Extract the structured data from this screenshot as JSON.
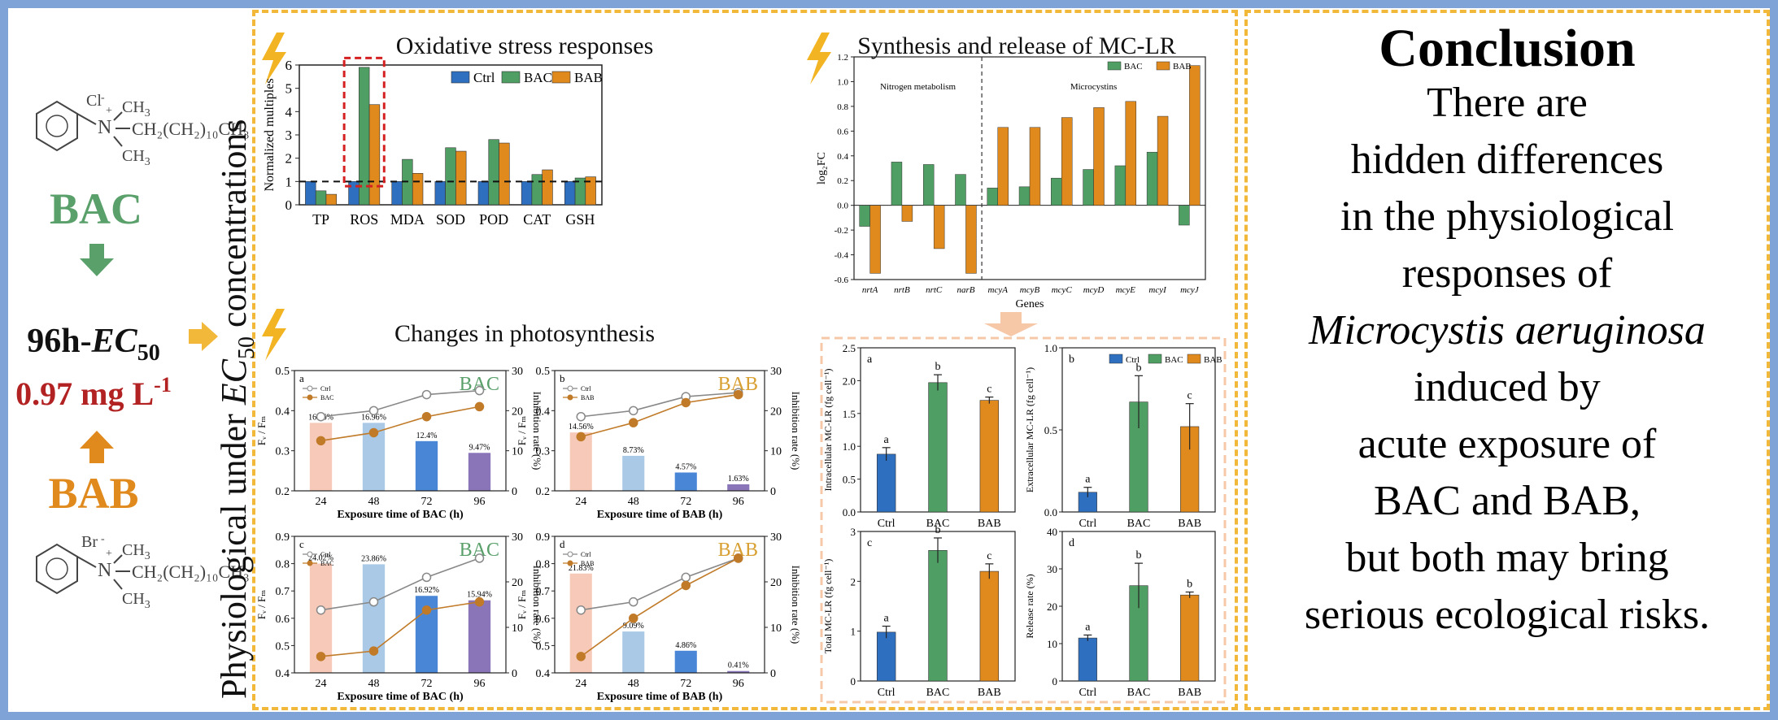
{
  "left": {
    "bac_label": "BAC",
    "bab_label": "BAB",
    "ec50_prefix": "96h-",
    "ec50_symbol": "EC",
    "ec50_sub": "50",
    "ec50_value": "0.97 mg L",
    "ec50_exp": "-1",
    "struct_bac": {
      "anion": "Cl",
      "methyl": "CH",
      "chain": "CH₂(CH₂)₁₀CH₃"
    },
    "struct_bab": {
      "anion": "Br",
      "methyl": "CH",
      "chain": "CH₂(CH₂)₁₀CH₃"
    },
    "colors": {
      "bac": "#5aa06b",
      "bab": "#e08a1e",
      "ec_red": "#b22222"
    }
  },
  "vertical_label": {
    "text": "Physiological under ",
    "ec": "EC",
    "sub": "50",
    "tail": " concentrations"
  },
  "sections": {
    "oxidative": "Oxidative stress responses",
    "photosynthesis": "Changes in photosynthesis",
    "mclr": "Synthesis and release of MC-LR"
  },
  "conclusion": {
    "title": "Conclusion",
    "lines": [
      "There are",
      "hidden differences",
      "in the physiological",
      "responses of"
    ],
    "species": "Microcystis aeruginosa",
    "lines2": [
      "induced by",
      "acute exposure of",
      "BAC and BAB,",
      "but both may bring",
      "serious ecological risks."
    ]
  },
  "chart_data": [
    {
      "id": "oxidative",
      "type": "bar",
      "title": "Oxidative stress responses",
      "ylabel": "Normalized multiples",
      "ylim": [
        0,
        6
      ],
      "yticks": [
        0,
        1,
        2,
        3,
        4,
        5,
        6
      ],
      "categories": [
        "TP",
        "ROS",
        "MDA",
        "SOD",
        "POD",
        "CAT",
        "GSH"
      ],
      "series": [
        {
          "name": "Ctrl",
          "color": "#2f6fbf",
          "values": [
            1,
            1,
            1,
            1,
            1,
            1,
            1
          ]
        },
        {
          "name": "BAC",
          "color": "#4f9e63",
          "values": [
            0.6,
            5.9,
            1.95,
            2.45,
            2.8,
            1.3,
            1.15
          ]
        },
        {
          "name": "BAB",
          "color": "#e08a1e",
          "values": [
            0.45,
            4.3,
            1.35,
            2.3,
            2.65,
            1.5,
            1.2
          ]
        }
      ],
      "reference_line": 1,
      "legend": "top-right"
    },
    {
      "id": "mcgenes",
      "type": "bar",
      "title": "Synthesis and release of MC-LR",
      "ylabel": "log₂FC",
      "xlabel": "Genes",
      "ylim": [
        -0.6,
        1.2
      ],
      "yticks": [
        -0.6,
        -0.4,
        -0.2,
        0.0,
        0.2,
        0.4,
        0.6,
        0.8,
        1.0,
        1.2
      ],
      "categories": [
        "nrtA",
        "nrtB",
        "nrtC",
        "narB",
        "mcyA",
        "mcyB",
        "mcyC",
        "mcyD",
        "mcyE",
        "mcyI",
        "mcyJ"
      ],
      "group_labels": [
        "Nitrogen metabolism",
        "Microcystins"
      ],
      "series": [
        {
          "name": "BAC",
          "color": "#4f9e63",
          "values": [
            -0.17,
            0.35,
            0.33,
            0.25,
            0.14,
            0.15,
            0.22,
            0.29,
            0.32,
            0.43,
            -0.16
          ]
        },
        {
          "name": "BAB",
          "color": "#e08a1e",
          "values": [
            -0.55,
            -0.13,
            -0.35,
            -0.55,
            0.63,
            0.63,
            0.71,
            0.79,
            0.84,
            0.72,
            1.13
          ]
        }
      ],
      "legend": "top-right"
    },
    {
      "id": "pa",
      "panel": "a",
      "type": "bar+line",
      "tag": "BAC",
      "xlabel": "Exposure time of BAC (h)",
      "ylabel": "Fᵥ / Fₘ",
      "y2label": "Inhibition rate (%)",
      "categories": [
        "24",
        "48",
        "72",
        "96"
      ],
      "ylim": [
        0.2,
        0.5
      ],
      "yticks": [
        0.2,
        0.3,
        0.4,
        0.5
      ],
      "y2lim": [
        0,
        30
      ],
      "y2ticks": [
        0,
        10,
        20,
        30
      ],
      "bars": [
        16.96,
        16.96,
        12.4,
        9.47
      ],
      "bar_labels": [
        "16.96%",
        "16.96%",
        "12.4%",
        "9.47%"
      ],
      "ctrl": [
        0.385,
        0.4,
        0.44,
        0.45
      ],
      "treat": [
        0.325,
        0.345,
        0.385,
        0.41
      ],
      "series_names": [
        "Ctrl",
        "BAC"
      ]
    },
    {
      "id": "pb",
      "panel": "b",
      "type": "bar+line",
      "tag": "BAB",
      "xlabel": "Exposure time of BAB (h)",
      "ylabel": "Fᵥ / Fₘ",
      "y2label": "Inhibition rate (%)",
      "categories": [
        "24",
        "48",
        "72",
        "96"
      ],
      "ylim": [
        0.2,
        0.5
      ],
      "yticks": [
        0.2,
        0.3,
        0.4,
        0.5
      ],
      "y2lim": [
        0,
        30
      ],
      "y2ticks": [
        0,
        10,
        20,
        30
      ],
      "bars": [
        14.56,
        8.73,
        4.57,
        1.63
      ],
      "bar_labels": [
        "14.56%",
        "8.73%",
        "4.57%",
        "1.63%"
      ],
      "ctrl": [
        0.385,
        0.4,
        0.435,
        0.445
      ],
      "treat": [
        0.335,
        0.37,
        0.42,
        0.44
      ],
      "series_names": [
        "Ctrl",
        "BAB"
      ]
    },
    {
      "id": "pc",
      "panel": "c",
      "type": "bar+line",
      "tag": "BAC",
      "xlabel": "Exposure time of BAC (h)",
      "ylabel": "Fᵥ / Fₘ",
      "y2label": "Inhibition rate (%)",
      "categories": [
        "24",
        "48",
        "72",
        "96"
      ],
      "ylim": [
        0.4,
        0.9
      ],
      "yticks": [
        0.4,
        0.5,
        0.6,
        0.7,
        0.8,
        0.9
      ],
      "y2lim": [
        0,
        30
      ],
      "y2ticks": [
        0,
        10,
        20,
        30
      ],
      "bars": [
        24.02,
        23.86,
        16.92,
        15.94
      ],
      "bar_labels": [
        "24.02%",
        "23.86%",
        "16.92%",
        "15.94%"
      ],
      "ctrl": [
        0.63,
        0.66,
        0.75,
        0.82
      ],
      "treat": [
        0.46,
        0.48,
        0.63,
        0.66
      ],
      "series_names": [
        "Ctrl",
        "BAC"
      ]
    },
    {
      "id": "pd",
      "panel": "d",
      "type": "bar+line",
      "tag": "BAB",
      "xlabel": "Exposure time of BAB (h)",
      "ylabel": "Fᵥ / Fₘ",
      "y2label": "Inhibition rate (%)",
      "categories": [
        "24",
        "48",
        "72",
        "96"
      ],
      "ylim": [
        0.4,
        0.9
      ],
      "yticks": [
        0.4,
        0.5,
        0.6,
        0.7,
        0.8,
        0.9
      ],
      "y2lim": [
        0,
        30
      ],
      "y2ticks": [
        0,
        10,
        20,
        30
      ],
      "bars": [
        21.83,
        9.09,
        4.86,
        0.41
      ],
      "bar_labels": [
        "21.83%",
        "9.09%",
        "4.86%",
        "0.41%"
      ],
      "ctrl": [
        0.63,
        0.66,
        0.75,
        0.82
      ],
      "treat": [
        0.46,
        0.6,
        0.72,
        0.82
      ],
      "series_names": [
        "Ctrl",
        "BAB"
      ]
    },
    {
      "id": "ma",
      "panel": "a",
      "type": "bar",
      "ylabel": "Intracellular MC-LR (fg cell⁻¹)",
      "categories": [
        "Ctrl",
        "BAC",
        "BAB"
      ],
      "values": [
        0.88,
        1.97,
        1.7
      ],
      "errors": [
        0.1,
        0.12,
        0.05
      ],
      "letters": [
        "a",
        "b",
        "c"
      ],
      "ylim": [
        0,
        2.5
      ],
      "yticks": [
        0.0,
        0.5,
        1.0,
        1.5,
        2.0,
        2.5
      ],
      "colors": [
        "#2f6fbf",
        "#4f9e63",
        "#e08a1e"
      ]
    },
    {
      "id": "mb",
      "panel": "b",
      "type": "bar",
      "ylabel": "Extracellular MC-LR (fg cell⁻¹)",
      "categories": [
        "Ctrl",
        "BAC",
        "BAB"
      ],
      "values": [
        0.12,
        0.67,
        0.52
      ],
      "errors": [
        0.03,
        0.16,
        0.14
      ],
      "letters": [
        "a",
        "b",
        "c"
      ],
      "ylim": [
        0,
        1.0
      ],
      "yticks": [
        0.0,
        0.5,
        1.0
      ],
      "colors": [
        "#2f6fbf",
        "#4f9e63",
        "#e08a1e"
      ],
      "legend": [
        "Ctrl",
        "BAC",
        "BAB"
      ]
    },
    {
      "id": "mc",
      "panel": "c",
      "type": "bar",
      "ylabel": "Total MC-LR (fg cell⁻¹)",
      "categories": [
        "Ctrl",
        "BAC",
        "BAB"
      ],
      "values": [
        0.98,
        2.62,
        2.2
      ],
      "errors": [
        0.12,
        0.25,
        0.15
      ],
      "letters": [
        "a",
        "b",
        "c"
      ],
      "ylim": [
        0,
        3
      ],
      "yticks": [
        0,
        1,
        2,
        3
      ],
      "colors": [
        "#2f6fbf",
        "#4f9e63",
        "#e08a1e"
      ]
    },
    {
      "id": "md",
      "panel": "d",
      "type": "bar",
      "ylabel": "Release rate (%)",
      "categories": [
        "Ctrl",
        "BAC",
        "BAB"
      ],
      "values": [
        11.5,
        25.5,
        23
      ],
      "errors": [
        0.8,
        6,
        0.8
      ],
      "letters": [
        "a",
        "b",
        "b"
      ],
      "ylim": [
        0,
        40
      ],
      "yticks": [
        0,
        10,
        20,
        30,
        40
      ],
      "colors": [
        "#2f6fbf",
        "#4f9e63",
        "#e08a1e"
      ]
    }
  ]
}
